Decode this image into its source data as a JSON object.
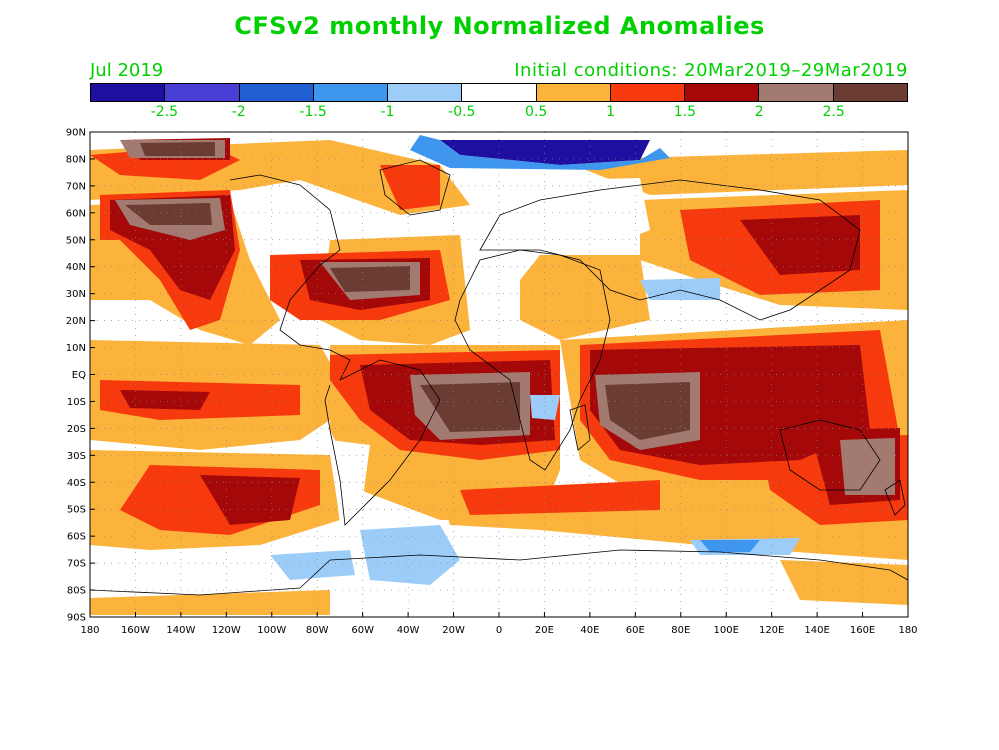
{
  "title": "CFSv2 monthly Normalized Anomalies",
  "valid_month": "Jul 2019",
  "initial_conditions": "Initial conditions: 20Mar2019–29Mar2019",
  "colorbar": {
    "colors": [
      "#1e0fa0",
      "#4a3fd4",
      "#1f5fd0",
      "#3f96ee",
      "#9ccdf8",
      "#ffffff",
      "#fbb33c",
      "#f63a0d",
      "#a40808",
      "#a27a70",
      "#6a3c32"
    ],
    "labels": [
      "-2.5",
      "-2",
      "-1.5",
      "-1",
      "-0.5",
      "0.5",
      "1",
      "1.5",
      "2",
      "2.5"
    ]
  },
  "axes": {
    "lat_labels": [
      "90N",
      "80N",
      "70N",
      "60N",
      "50N",
      "40N",
      "30N",
      "20N",
      "10N",
      "EQ",
      "10S",
      "20S",
      "30S",
      "40S",
      "50S",
      "60S",
      "70S",
      "80S",
      "90S"
    ],
    "lon_labels": [
      "180",
      "160W",
      "140W",
      "120W",
      "100W",
      "80W",
      "60W",
      "40W",
      "20W",
      "0",
      "20E",
      "40E",
      "60E",
      "80E",
      "100E",
      "120E",
      "140E",
      "160E",
      "180"
    ]
  },
  "anomaly_regions": [
    {
      "name": "arctic-negative",
      "lon": [
        -20,
        30
      ],
      "lat": [
        80,
        88
      ],
      "level": -2.5
    },
    {
      "name": "south-atlantic-warm",
      "lon": [
        -30,
        10
      ],
      "lat": [
        -35,
        -5
      ],
      "level": 2.5
    },
    {
      "name": "indian-ocean-warm",
      "lon": [
        40,
        80
      ],
      "lat": [
        -30,
        -5
      ],
      "level": 2.5
    },
    {
      "name": "gulf-atlantic-warm",
      "lon": [
        -80,
        -40
      ],
      "lat": [
        25,
        40
      ],
      "level": 2.5
    },
    {
      "name": "north-pacific-warm",
      "lon": [
        -170,
        -120
      ],
      "lat": [
        45,
        65
      ],
      "level": 2.5
    },
    {
      "name": "southern-ocean-cool",
      "lon": [
        -70,
        -30
      ],
      "lat": [
        -75,
        -55
      ],
      "level": -1
    }
  ]
}
